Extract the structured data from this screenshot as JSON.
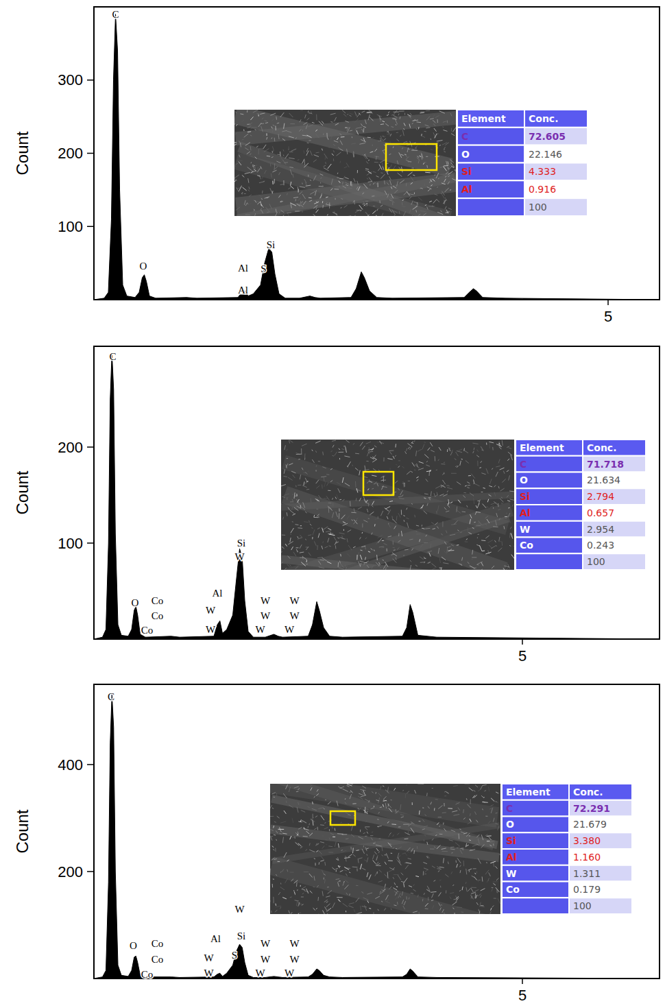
{
  "chart_data": [
    {
      "type": "area",
      "y_label": "Count",
      "color": "#000000",
      "x": [
        0,
        0.1,
        0.14,
        0.17,
        0.19,
        0.21,
        0.23,
        0.25,
        0.28,
        0.32,
        0.4,
        0.44,
        0.47,
        0.49,
        0.51,
        0.54,
        0.6,
        0.9,
        1.0,
        1.4,
        1.44,
        1.47,
        1.5,
        1.55,
        1.62,
        1.66,
        1.7,
        1.73,
        1.76,
        1.8,
        1.86,
        2.0,
        2.1,
        2.15,
        2.2,
        2.5,
        2.55,
        2.6,
        2.63,
        2.68,
        2.75,
        2.9,
        3.6,
        3.65,
        3.69,
        3.72,
        3.78,
        4.0,
        5.5
      ],
      "values": [
        0,
        2,
        10,
        110,
        300,
        390,
        340,
        150,
        20,
        5,
        3,
        10,
        30,
        34,
        25,
        5,
        2,
        3,
        2,
        3,
        10,
        12,
        5,
        8,
        20,
        50,
        70,
        65,
        35,
        8,
        2,
        2,
        5,
        3,
        2,
        3,
        15,
        38,
        30,
        12,
        3,
        2,
        3,
        10,
        15,
        12,
        3,
        2,
        0
      ],
      "xlim": [
        0,
        5.5
      ],
      "ylim": [
        0,
        400
      ],
      "xticks": [
        5
      ],
      "yticks": [
        100,
        200,
        300
      ],
      "annotations": [
        {
          "text": "C",
          "x": 0.21,
          "y": 390
        },
        {
          "text": "O",
          "x": 0.48,
          "y": 46
        },
        {
          "text": "Al",
          "x": 1.45,
          "y": 43
        },
        {
          "text": "Al",
          "x": 1.45,
          "y": 13
        },
        {
          "text": "Si",
          "x": 1.72,
          "y": 75
        },
        {
          "text": "S",
          "x": 1.65,
          "y": 42
        }
      ],
      "table": {
        "header": [
          "Element",
          "Conc."
        ],
        "rows": [
          {
            "element": "C",
            "conc": "72.605",
            "color": "#7a2fb0"
          },
          {
            "element": "O",
            "conc": "22.146"
          },
          {
            "element": "Si",
            "conc": "4.333",
            "color": "#e01e1e"
          },
          {
            "element": "Al",
            "conc": "0.916",
            "color": "#e01e1e"
          }
        ],
        "total": "100"
      }
    },
    {
      "type": "area",
      "y_label": "Count",
      "color": "#000000",
      "x": [
        0,
        0.1,
        0.14,
        0.17,
        0.19,
        0.21,
        0.23,
        0.25,
        0.28,
        0.32,
        0.4,
        0.44,
        0.47,
        0.49,
        0.51,
        0.54,
        0.6,
        0.9,
        1.0,
        1.4,
        1.44,
        1.47,
        1.5,
        1.55,
        1.62,
        1.66,
        1.7,
        1.73,
        1.76,
        1.8,
        1.86,
        2.0,
        2.1,
        2.15,
        2.2,
        2.5,
        2.55,
        2.6,
        2.63,
        2.68,
        2.75,
        2.9,
        3.6,
        3.65,
        3.69,
        3.72,
        3.78,
        4.0,
        6.6
      ],
      "values": [
        0,
        2,
        10,
        100,
        250,
        298,
        260,
        110,
        15,
        4,
        3,
        10,
        30,
        34,
        25,
        5,
        2,
        3,
        2,
        3,
        15,
        19,
        6,
        10,
        25,
        60,
        94,
        85,
        40,
        8,
        2,
        2,
        5,
        3,
        2,
        3,
        15,
        39,
        30,
        12,
        3,
        2,
        3,
        12,
        36,
        28,
        4,
        2,
        0
      ],
      "xlim": [
        0,
        6.6
      ],
      "ylim": [
        0,
        305
      ],
      "xticks": [
        5
      ],
      "yticks": [
        100,
        200
      ],
      "annotations": [
        {
          "text": "C",
          "x": 0.22,
          "y": 294
        },
        {
          "text": "O",
          "x": 0.48,
          "y": 38
        },
        {
          "text": "Co",
          "x": 0.74,
          "y": 40
        },
        {
          "text": "Co",
          "x": 0.74,
          "y": 24
        },
        {
          "text": "Co",
          "x": 0.62,
          "y": 9
        },
        {
          "text": "Al",
          "x": 1.44,
          "y": 48
        },
        {
          "text": "W",
          "x": 1.36,
          "y": 30
        },
        {
          "text": "W",
          "x": 1.36,
          "y": 10
        },
        {
          "text": "Si",
          "x": 1.72,
          "y": 100
        },
        {
          "text": "W",
          "x": 1.7,
          "y": 86
        },
        {
          "text": "W",
          "x": 2.0,
          "y": 40
        },
        {
          "text": "W",
          "x": 2.0,
          "y": 24
        },
        {
          "text": "W",
          "x": 1.94,
          "y": 10
        },
        {
          "text": "W",
          "x": 2.34,
          "y": 40
        },
        {
          "text": "W",
          "x": 2.34,
          "y": 24
        },
        {
          "text": "W",
          "x": 2.28,
          "y": 10
        }
      ],
      "table": {
        "header": [
          "Element",
          "Conc."
        ],
        "rows": [
          {
            "element": "C",
            "conc": "71.718",
            "color": "#7a2fb0"
          },
          {
            "element": "O",
            "conc": "21.634"
          },
          {
            "element": "Si",
            "conc": "2.794",
            "color": "#e01e1e"
          },
          {
            "element": "Al",
            "conc": "0.657",
            "color": "#e01e1e"
          },
          {
            "element": "W",
            "conc": "2.954"
          },
          {
            "element": "Co",
            "conc": "0.243"
          }
        ],
        "total": "100"
      }
    },
    {
      "type": "area",
      "y_label": "Count",
      "color": "#000000",
      "x": [
        0,
        0.1,
        0.14,
        0.17,
        0.19,
        0.21,
        0.23,
        0.25,
        0.28,
        0.32,
        0.4,
        0.44,
        0.47,
        0.49,
        0.51,
        0.54,
        0.6,
        0.9,
        1.0,
        1.4,
        1.44,
        1.47,
        1.5,
        1.55,
        1.62,
        1.66,
        1.7,
        1.73,
        1.76,
        1.8,
        1.86,
        2.0,
        2.1,
        2.15,
        2.2,
        2.5,
        2.55,
        2.6,
        2.63,
        2.68,
        2.75,
        2.9,
        3.6,
        3.65,
        3.69,
        3.72,
        3.78,
        4.0,
        6.6
      ],
      "values": [
        0,
        3,
        15,
        180,
        440,
        531,
        470,
        200,
        25,
        6,
        4,
        15,
        40,
        42,
        30,
        6,
        3,
        3,
        2,
        3,
        8,
        10,
        4,
        10,
        25,
        50,
        64,
        58,
        30,
        6,
        2,
        2,
        4,
        3,
        2,
        3,
        8,
        18,
        15,
        6,
        3,
        2,
        3,
        8,
        18,
        14,
        3,
        2,
        0
      ],
      "xlim": [
        0,
        6.6
      ],
      "ylim": [
        0,
        550
      ],
      "xticks": [
        5
      ],
      "yticks": [
        200,
        400
      ],
      "annotations": [
        {
          "text": "C",
          "x": 0.2,
          "y": 527
        },
        {
          "text": "O",
          "x": 0.46,
          "y": 62
        },
        {
          "text": "Co",
          "x": 0.74,
          "y": 65
        },
        {
          "text": "Co",
          "x": 0.74,
          "y": 36
        },
        {
          "text": "Co",
          "x": 0.62,
          "y": 8
        },
        {
          "text": "Al",
          "x": 1.42,
          "y": 75
        },
        {
          "text": "W",
          "x": 1.34,
          "y": 39
        },
        {
          "text": "W",
          "x": 1.34,
          "y": 10
        },
        {
          "text": "Si",
          "x": 1.72,
          "y": 80
        },
        {
          "text": "W",
          "x": 1.7,
          "y": 130
        },
        {
          "text": "S",
          "x": 1.64,
          "y": 44
        },
        {
          "text": "W",
          "x": 2.0,
          "y": 65
        },
        {
          "text": "W",
          "x": 2.0,
          "y": 36
        },
        {
          "text": "W",
          "x": 1.94,
          "y": 10
        },
        {
          "text": "W",
          "x": 2.34,
          "y": 65
        },
        {
          "text": "W",
          "x": 2.34,
          "y": 36
        },
        {
          "text": "W",
          "x": 2.28,
          "y": 10
        }
      ],
      "table": {
        "header": [
          "Element",
          "Conc."
        ],
        "rows": [
          {
            "element": "C",
            "conc": "72.291",
            "color": "#7a2fb0"
          },
          {
            "element": "O",
            "conc": "21.679"
          },
          {
            "element": "Si",
            "conc": "3.380",
            "color": "#e01e1e"
          },
          {
            "element": "Al",
            "conc": "1.160",
            "color": "#e01e1e"
          },
          {
            "element": "W",
            "conc": "1.311"
          },
          {
            "element": "Co",
            "conc": "0.179"
          }
        ],
        "total": "100"
      }
    }
  ]
}
